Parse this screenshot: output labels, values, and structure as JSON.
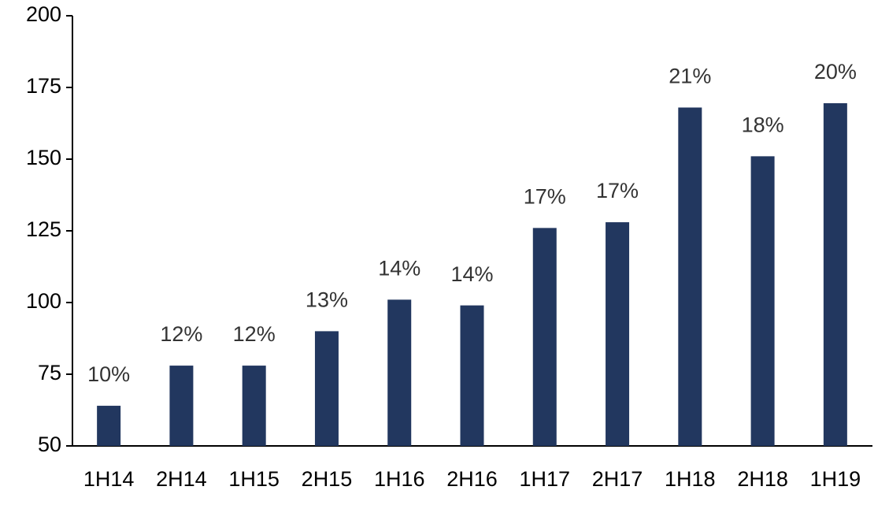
{
  "chart_data": {
    "type": "bar",
    "categories": [
      "1H14",
      "2H14",
      "1H15",
      "2H15",
      "1H16",
      "2H16",
      "1H17",
      "2H17",
      "1H18",
      "2H18",
      "1H19"
    ],
    "values": [
      64,
      78,
      78,
      90,
      101,
      99,
      126,
      128,
      168,
      151,
      169.5
    ],
    "annotations": [
      "10%",
      "12%",
      "12%",
      "13%",
      "14%",
      "14%",
      "17%",
      "17%",
      "21%",
      "18%",
      "20%"
    ],
    "color": "#22375f",
    "ylim": [
      50,
      200
    ],
    "yticks": [
      50,
      75,
      100,
      125,
      150,
      175,
      200
    ],
    "grid": false
  }
}
